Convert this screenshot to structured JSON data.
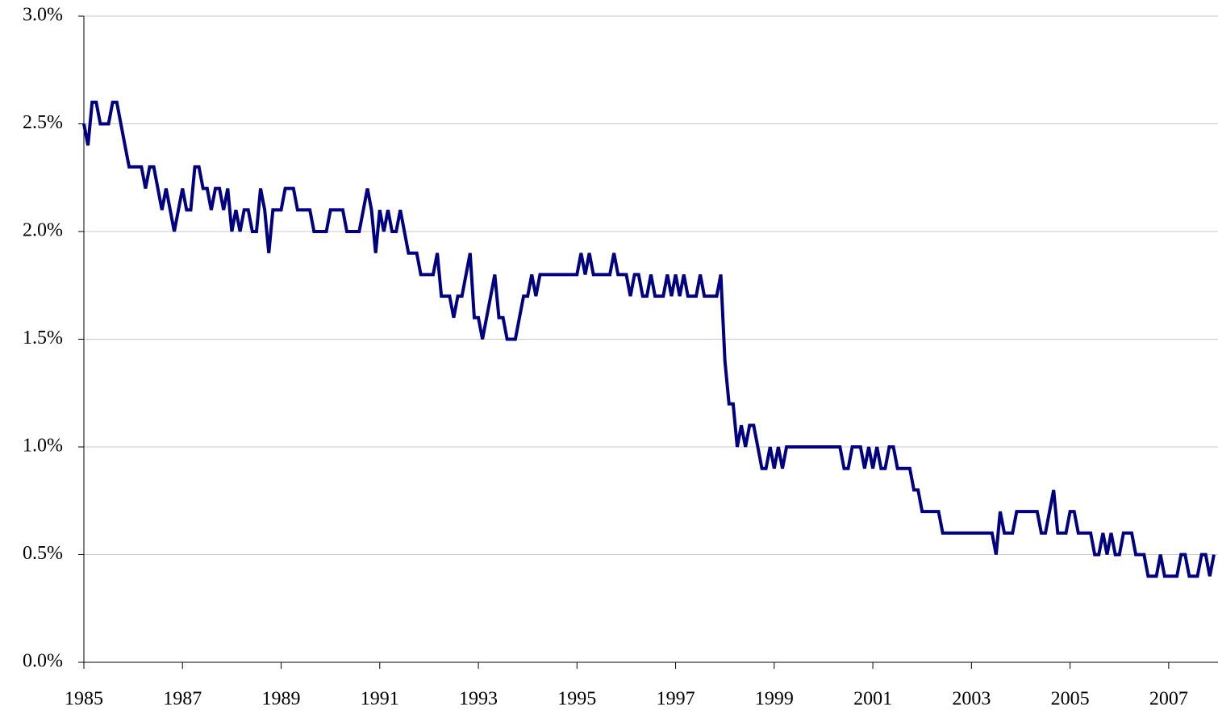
{
  "chart_data": {
    "type": "line",
    "x": [
      1985,
      1985.083,
      1985.167,
      1985.25,
      1985.333,
      1985.417,
      1985.5,
      1985.583,
      1985.667,
      1985.75,
      1985.833,
      1985.917,
      1986,
      1986.083,
      1986.167,
      1986.25,
      1986.333,
      1986.417,
      1986.5,
      1986.583,
      1986.667,
      1986.75,
      1986.833,
      1986.917,
      1987,
      1987.083,
      1987.167,
      1987.25,
      1987.333,
      1987.417,
      1987.5,
      1987.583,
      1987.667,
      1987.75,
      1987.833,
      1987.917,
      1988,
      1988.083,
      1988.167,
      1988.25,
      1988.333,
      1988.417,
      1988.5,
      1988.583,
      1988.667,
      1988.75,
      1988.833,
      1988.917,
      1989,
      1989.083,
      1989.167,
      1989.25,
      1989.333,
      1989.417,
      1989.5,
      1989.583,
      1989.667,
      1989.75,
      1989.833,
      1989.917,
      1990,
      1990.083,
      1990.167,
      1990.25,
      1990.333,
      1990.417,
      1990.5,
      1990.583,
      1990.667,
      1990.75,
      1990.833,
      1990.917,
      1991,
      1991.083,
      1991.167,
      1991.25,
      1991.333,
      1991.417,
      1991.5,
      1991.583,
      1991.667,
      1991.75,
      1991.833,
      1991.917,
      1992,
      1992.083,
      1992.167,
      1992.25,
      1992.333,
      1992.417,
      1992.5,
      1992.583,
      1992.667,
      1992.75,
      1992.833,
      1992.917,
      1993,
      1993.083,
      1993.167,
      1993.25,
      1993.333,
      1993.417,
      1993.5,
      1993.583,
      1993.667,
      1993.75,
      1993.833,
      1993.917,
      1994,
      1994.083,
      1994.167,
      1994.25,
      1994.333,
      1994.417,
      1994.5,
      1994.583,
      1994.667,
      1994.75,
      1994.833,
      1994.917,
      1995,
      1995.083,
      1995.167,
      1995.25,
      1995.333,
      1995.417,
      1995.5,
      1995.583,
      1995.667,
      1995.75,
      1995.833,
      1995.917,
      1996,
      1996.083,
      1996.167,
      1996.25,
      1996.333,
      1996.417,
      1996.5,
      1996.583,
      1996.667,
      1996.75,
      1996.833,
      1996.917,
      1997,
      1997.083,
      1997.167,
      1997.25,
      1997.333,
      1997.417,
      1997.5,
      1997.583,
      1997.667,
      1997.75,
      1997.833,
      1997.917,
      1998,
      1998.083,
      1998.167,
      1998.25,
      1998.333,
      1998.417,
      1998.5,
      1998.583,
      1998.667,
      1998.75,
      1998.833,
      1998.917,
      1999,
      1999.083,
      1999.167,
      1999.25,
      1999.333,
      1999.417,
      1999.5,
      1999.583,
      1999.667,
      1999.75,
      1999.833,
      1999.917,
      2000,
      2000.083,
      2000.167,
      2000.25,
      2000.333,
      2000.417,
      2000.5,
      2000.583,
      2000.667,
      2000.75,
      2000.833,
      2000.917,
      2001,
      2001.083,
      2001.167,
      2001.25,
      2001.333,
      2001.417,
      2001.5,
      2001.583,
      2001.667,
      2001.75,
      2001.833,
      2001.917,
      2002,
      2002.083,
      2002.167,
      2002.25,
      2002.333,
      2002.417,
      2002.5,
      2002.583,
      2002.667,
      2002.75,
      2002.833,
      2002.917,
      2003,
      2003.083,
      2003.167,
      2003.25,
      2003.333,
      2003.417,
      2003.5,
      2003.583,
      2003.667,
      2003.75,
      2003.833,
      2003.917,
      2004,
      2004.083,
      2004.167,
      2004.25,
      2004.333,
      2004.417,
      2004.5,
      2004.583,
      2004.667,
      2004.75,
      2004.833,
      2004.917,
      2005,
      2005.083,
      2005.167,
      2005.25,
      2005.333,
      2005.417,
      2005.5,
      2005.583,
      2005.667,
      2005.75,
      2005.833,
      2005.917,
      2006,
      2006.083,
      2006.167,
      2006.25,
      2006.333,
      2006.417,
      2006.5,
      2006.583,
      2006.667,
      2006.75,
      2006.833,
      2006.917,
      2007,
      2007.083,
      2007.167,
      2007.25,
      2007.333,
      2007.417,
      2007.5,
      2007.583,
      2007.667,
      2007.75,
      2007.833,
      2007.917
    ],
    "values": [
      2.5,
      2.4,
      2.6,
      2.6,
      2.5,
      2.5,
      2.5,
      2.6,
      2.6,
      2.5,
      2.4,
      2.3,
      2.3,
      2.3,
      2.3,
      2.2,
      2.3,
      2.3,
      2.2,
      2.1,
      2.2,
      2.1,
      2.0,
      2.1,
      2.2,
      2.1,
      2.1,
      2.3,
      2.3,
      2.2,
      2.2,
      2.1,
      2.2,
      2.2,
      2.1,
      2.2,
      2.0,
      2.1,
      2.0,
      2.1,
      2.1,
      2.0,
      2.0,
      2.2,
      2.1,
      1.9,
      2.1,
      2.1,
      2.1,
      2.2,
      2.2,
      2.2,
      2.1,
      2.1,
      2.1,
      2.1,
      2.0,
      2.0,
      2.0,
      2.0,
      2.1,
      2.1,
      2.1,
      2.1,
      2.0,
      2.0,
      2.0,
      2.0,
      2.1,
      2.2,
      2.1,
      1.9,
      2.1,
      2.0,
      2.1,
      2.0,
      2.0,
      2.1,
      2.0,
      1.9,
      1.9,
      1.9,
      1.8,
      1.8,
      1.8,
      1.8,
      1.9,
      1.7,
      1.7,
      1.7,
      1.6,
      1.7,
      1.7,
      1.8,
      1.9,
      1.6,
      1.6,
      1.5,
      1.6,
      1.7,
      1.8,
      1.6,
      1.6,
      1.5,
      1.5,
      1.5,
      1.6,
      1.7,
      1.7,
      1.8,
      1.7,
      1.8,
      1.8,
      1.8,
      1.8,
      1.8,
      1.8,
      1.8,
      1.8,
      1.8,
      1.8,
      1.9,
      1.8,
      1.9,
      1.8,
      1.8,
      1.8,
      1.8,
      1.8,
      1.9,
      1.8,
      1.8,
      1.8,
      1.7,
      1.8,
      1.8,
      1.7,
      1.7,
      1.8,
      1.7,
      1.7,
      1.7,
      1.8,
      1.7,
      1.8,
      1.7,
      1.8,
      1.7,
      1.7,
      1.7,
      1.8,
      1.7,
      1.7,
      1.7,
      1.7,
      1.8,
      1.4,
      1.2,
      1.2,
      1.0,
      1.1,
      1.0,
      1.1,
      1.1,
      1.0,
      0.9,
      0.9,
      1.0,
      0.9,
      1.0,
      0.9,
      1.0,
      1.0,
      1.0,
      1.0,
      1.0,
      1.0,
      1.0,
      1.0,
      1.0,
      1.0,
      1.0,
      1.0,
      1.0,
      1.0,
      0.9,
      0.9,
      1.0,
      1.0,
      1.0,
      0.9,
      1.0,
      0.9,
      1.0,
      0.9,
      0.9,
      1.0,
      1.0,
      0.9,
      0.9,
      0.9,
      0.9,
      0.8,
      0.8,
      0.7,
      0.7,
      0.7,
      0.7,
      0.7,
      0.6,
      0.6,
      0.6,
      0.6,
      0.6,
      0.6,
      0.6,
      0.6,
      0.6,
      0.6,
      0.6,
      0.6,
      0.6,
      0.5,
      0.7,
      0.6,
      0.6,
      0.6,
      0.7,
      0.7,
      0.7,
      0.7,
      0.7,
      0.7,
      0.6,
      0.6,
      0.7,
      0.8,
      0.6,
      0.6,
      0.6,
      0.7,
      0.7,
      0.6,
      0.6,
      0.6,
      0.6,
      0.5,
      0.5,
      0.6,
      0.5,
      0.6,
      0.5,
      0.5,
      0.6,
      0.6,
      0.6,
      0.5,
      0.5,
      0.5,
      0.4,
      0.4,
      0.4,
      0.5,
      0.4,
      0.4,
      0.4,
      0.4,
      0.5,
      0.5,
      0.4,
      0.4,
      0.4,
      0.5,
      0.5,
      0.4,
      0.5
    ],
    "color": "#000080",
    "xlim": [
      1985,
      2008
    ],
    "xticks": [
      1985,
      1987,
      1989,
      1991,
      1993,
      1995,
      1997,
      1999,
      2001,
      2003,
      2005,
      2007
    ],
    "ylim": [
      0,
      3
    ],
    "yticks": [
      {
        "value": 0,
        "label": "0.0%"
      },
      {
        "value": 0.5,
        "label": "0.5%"
      },
      {
        "value": 1,
        "label": "1.0%"
      },
      {
        "value": 1.5,
        "label": "1.5%"
      },
      {
        "value": 2,
        "label": "2.0%"
      },
      {
        "value": 2.5,
        "label": "2.5%"
      },
      {
        "value": 3,
        "label": "3.0%"
      }
    ],
    "grid": true
  }
}
